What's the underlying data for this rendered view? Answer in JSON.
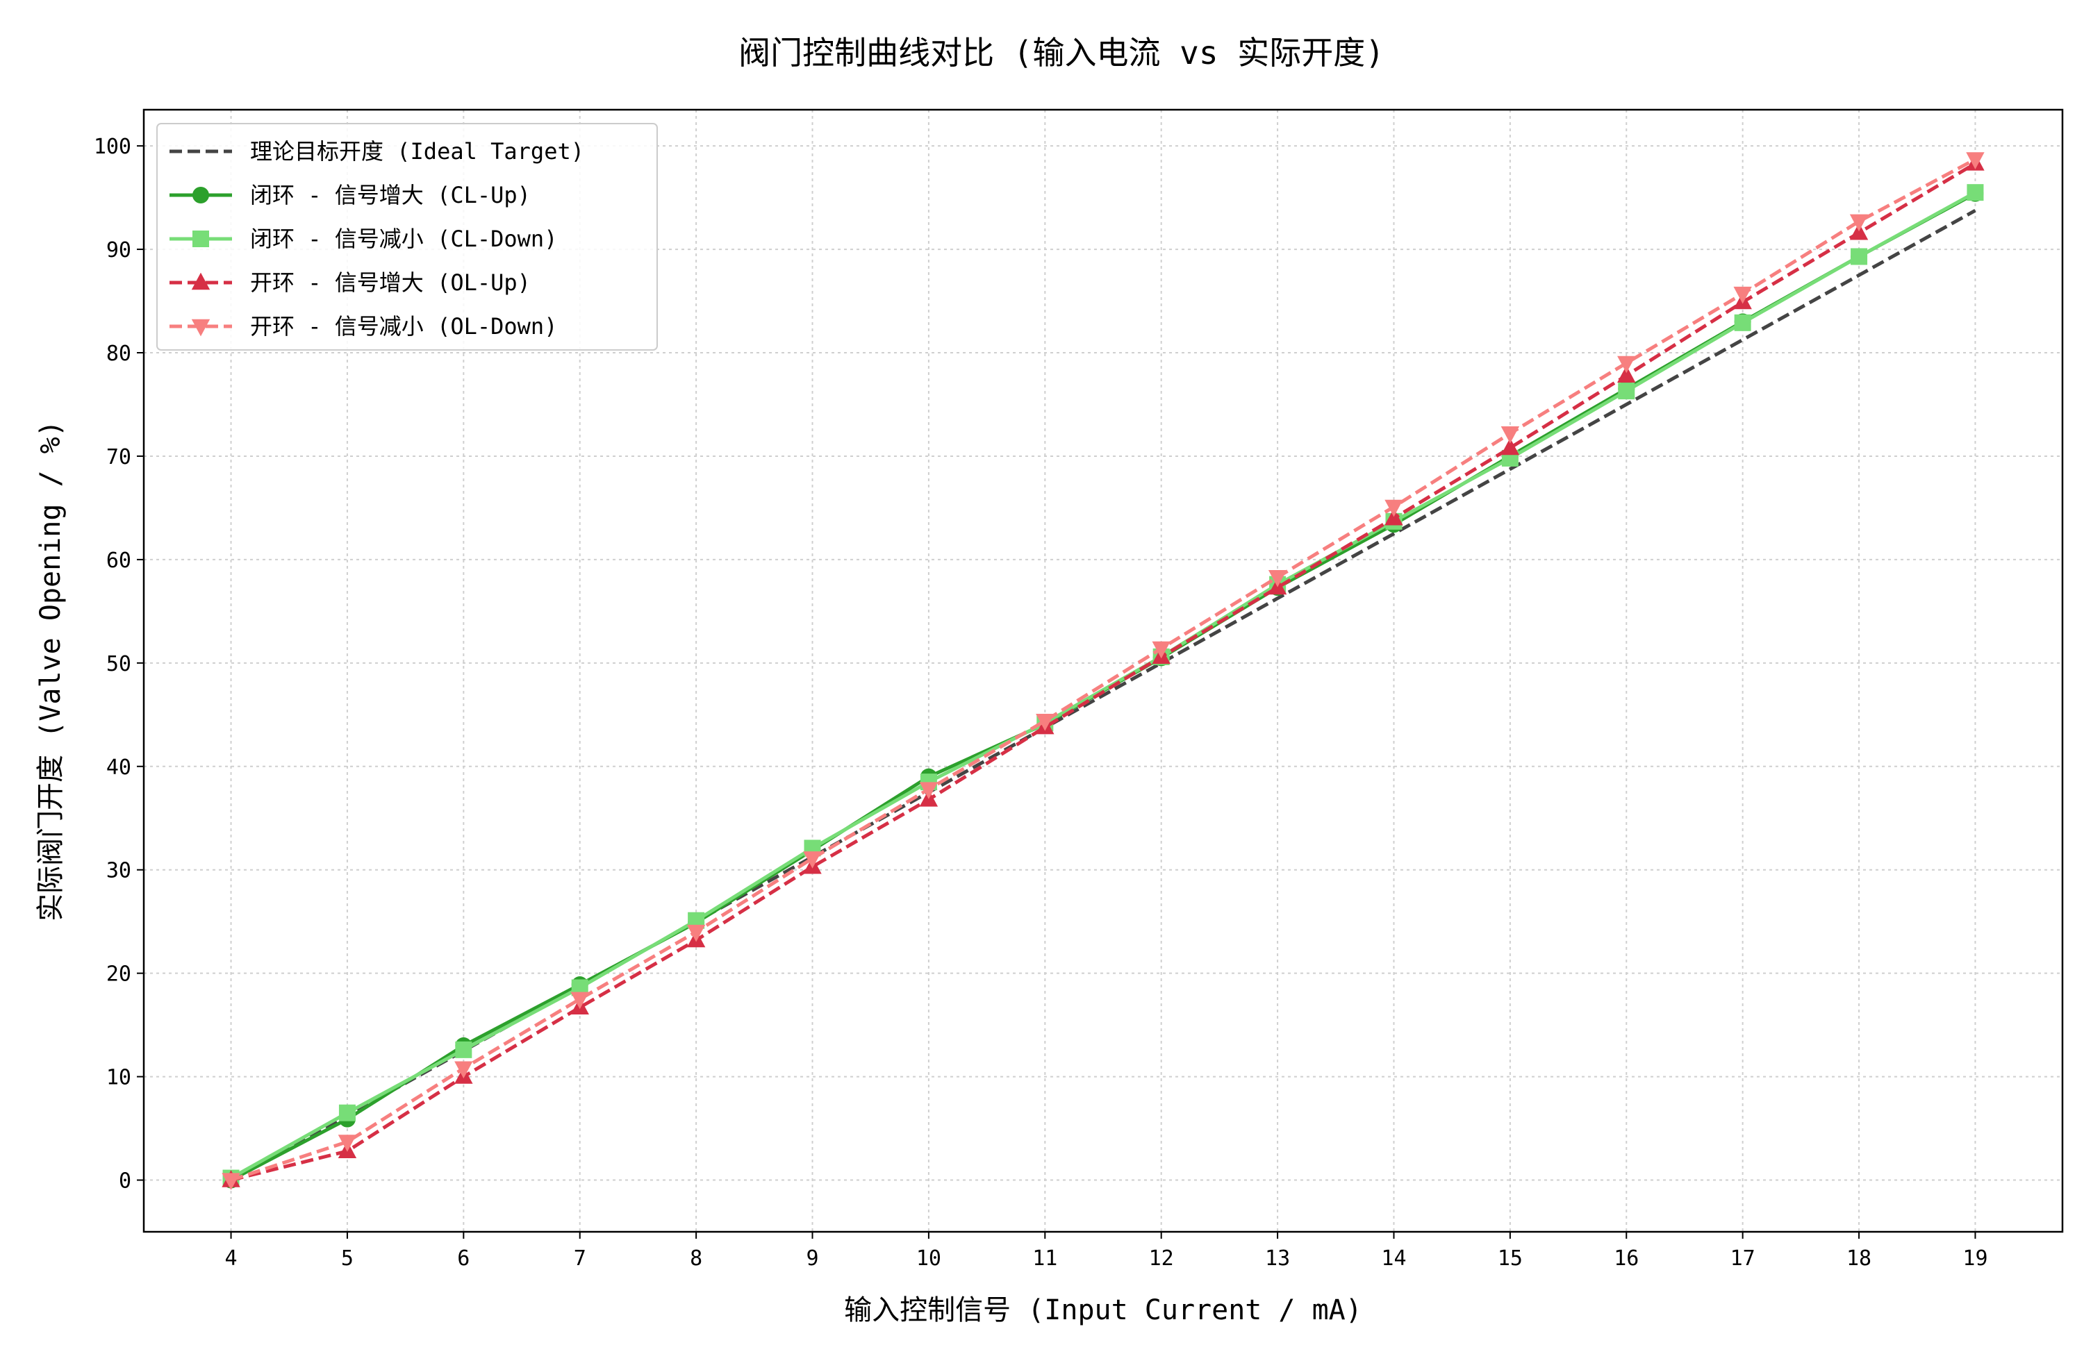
{
  "chart_data": {
    "type": "line",
    "title": "阀门控制曲线对比 (输入电流 vs 实际开度)",
    "xlabel": "输入控制信号 (Input Current / mA)",
    "ylabel": "实际阀门开度 (Valve Opening / %)",
    "xlim": [
      3.25,
      19.75
    ],
    "ylim": [
      -5,
      103.5
    ],
    "xticks": [
      4,
      5,
      6,
      7,
      8,
      9,
      10,
      11,
      12,
      13,
      14,
      15,
      16,
      17,
      18,
      19
    ],
    "yticks": [
      0,
      10,
      20,
      30,
      40,
      50,
      60,
      70,
      80,
      90,
      100
    ],
    "grid": true,
    "legend_position": "top-left",
    "x": [
      4,
      5,
      6,
      7,
      8,
      9,
      10,
      11,
      12,
      13,
      14,
      15,
      16,
      17,
      18,
      19
    ],
    "series": [
      {
        "name": "理论目标开度 (Ideal Target)",
        "color": "#444444",
        "dash": "dashed",
        "marker": "none",
        "values": [
          0,
          6.25,
          12.5,
          18.75,
          25,
          31.25,
          37.5,
          43.75,
          50,
          56.25,
          62.5,
          68.75,
          75,
          81.25,
          87.5,
          93.75
        ]
      },
      {
        "name": "闭环 - 信号增大 (CL-Up)",
        "color": "#2ca02c",
        "dash": "solid",
        "marker": "circle",
        "values": [
          0,
          5.9,
          13.0,
          18.9,
          24.9,
          31.9,
          39.0,
          44.1,
          50.5,
          57.3,
          63.4,
          70.0,
          76.5,
          83.0,
          89.3,
          95.4
        ]
      },
      {
        "name": "闭环 - 信号减小 (CL-Down)",
        "color": "#77dd77",
        "dash": "solid",
        "marker": "square",
        "values": [
          0.2,
          6.5,
          12.6,
          18.6,
          25.1,
          32.1,
          38.5,
          44.2,
          50.6,
          57.6,
          63.7,
          69.8,
          76.3,
          82.9,
          89.3,
          95.5
        ]
      },
      {
        "name": "开环 - 信号增大 (OL-Up)",
        "color": "#d62f45",
        "dash": "dashed",
        "marker": "triangle-up",
        "values": [
          0,
          2.8,
          10.0,
          16.7,
          23.2,
          30.3,
          36.8,
          43.8,
          50.6,
          57.3,
          64.0,
          70.8,
          77.8,
          84.9,
          91.6,
          98.3
        ]
      },
      {
        "name": "开环 - 信号减小 (OL-Down)",
        "color": "#f77f7f",
        "dash": "dashed",
        "marker": "triangle-down",
        "values": [
          0,
          3.7,
          10.8,
          17.5,
          24.0,
          31.1,
          37.8,
          44.4,
          51.4,
          58.3,
          65.1,
          72.2,
          79.0,
          85.7,
          92.7,
          98.7
        ]
      }
    ]
  }
}
